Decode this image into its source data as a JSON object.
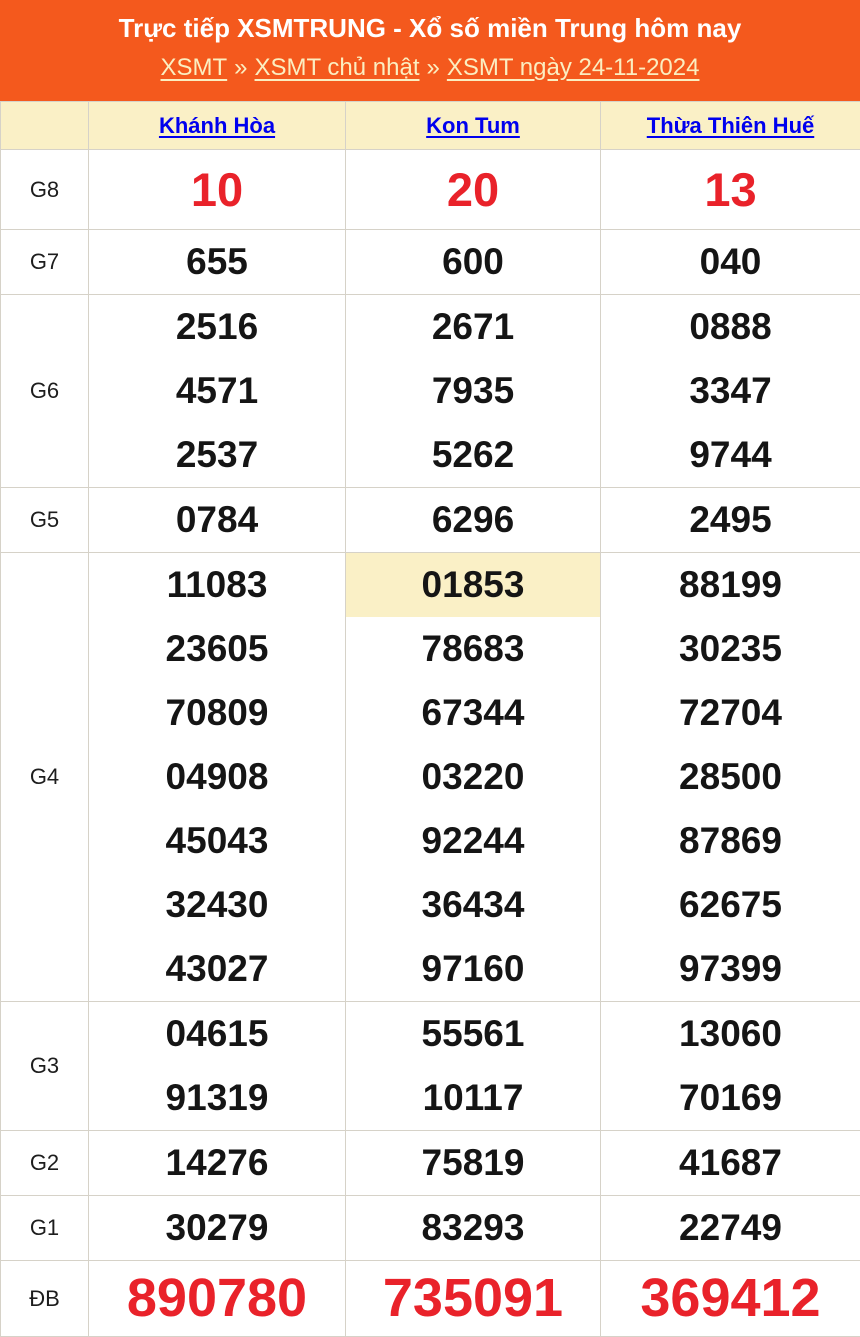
{
  "header": {
    "title": "Trực tiếp XSMTRUNG - Xổ số miền Trung hôm nay",
    "separator": "»",
    "breadcrumb": [
      {
        "label": "XSMT"
      },
      {
        "label": "XSMT chủ nhật"
      },
      {
        "label": "XSMT ngày 24-11-2024"
      }
    ]
  },
  "table": {
    "columns": [
      "Khánh Hòa",
      "Kon Tum",
      "Thừa Thiên Huế"
    ],
    "rows": [
      {
        "label": "G8",
        "style": "g8",
        "values": [
          [
            "10"
          ],
          [
            "20"
          ],
          [
            "13"
          ]
        ]
      },
      {
        "label": "G7",
        "style": "",
        "values": [
          [
            "655"
          ],
          [
            "600"
          ],
          [
            "040"
          ]
        ]
      },
      {
        "label": "G6",
        "style": "",
        "values": [
          [
            "2516",
            "4571",
            "2537"
          ],
          [
            "2671",
            "7935",
            "5262"
          ],
          [
            "0888",
            "3347",
            "9744"
          ]
        ]
      },
      {
        "label": "G5",
        "style": "",
        "values": [
          [
            "0784"
          ],
          [
            "6296"
          ],
          [
            "2495"
          ]
        ]
      },
      {
        "label": "G4",
        "style": "",
        "highlight": {
          "col": 1,
          "line": 0
        },
        "values": [
          [
            "11083",
            "23605",
            "70809",
            "04908",
            "45043",
            "32430",
            "43027"
          ],
          [
            "01853",
            "78683",
            "67344",
            "03220",
            "92244",
            "36434",
            "97160"
          ],
          [
            "88199",
            "30235",
            "72704",
            "28500",
            "87869",
            "62675",
            "97399"
          ]
        ]
      },
      {
        "label": "G3",
        "style": "",
        "values": [
          [
            "04615",
            "91319"
          ],
          [
            "55561",
            "10117"
          ],
          [
            "13060",
            "70169"
          ]
        ]
      },
      {
        "label": "G2",
        "style": "",
        "values": [
          [
            "14276"
          ],
          [
            "75819"
          ],
          [
            "41687"
          ]
        ]
      },
      {
        "label": "G1",
        "style": "",
        "values": [
          [
            "30279"
          ],
          [
            "83293"
          ],
          [
            "22749"
          ]
        ]
      },
      {
        "label": "ĐB",
        "style": "db",
        "values": [
          [
            "890780"
          ],
          [
            "735091"
          ],
          [
            "369412"
          ]
        ]
      }
    ]
  },
  "colors": {
    "banner_bg": "#f4591d",
    "banner_title": "#ffffff",
    "breadcrumb_link": "#fbeec1",
    "table_header_bg": "#faf0c6",
    "column_link_blue": "#0000ee",
    "number_black": "#151515",
    "number_red": "#e9222a",
    "highlight_bg": "#faf0c6",
    "border": "#d6d2c8"
  }
}
